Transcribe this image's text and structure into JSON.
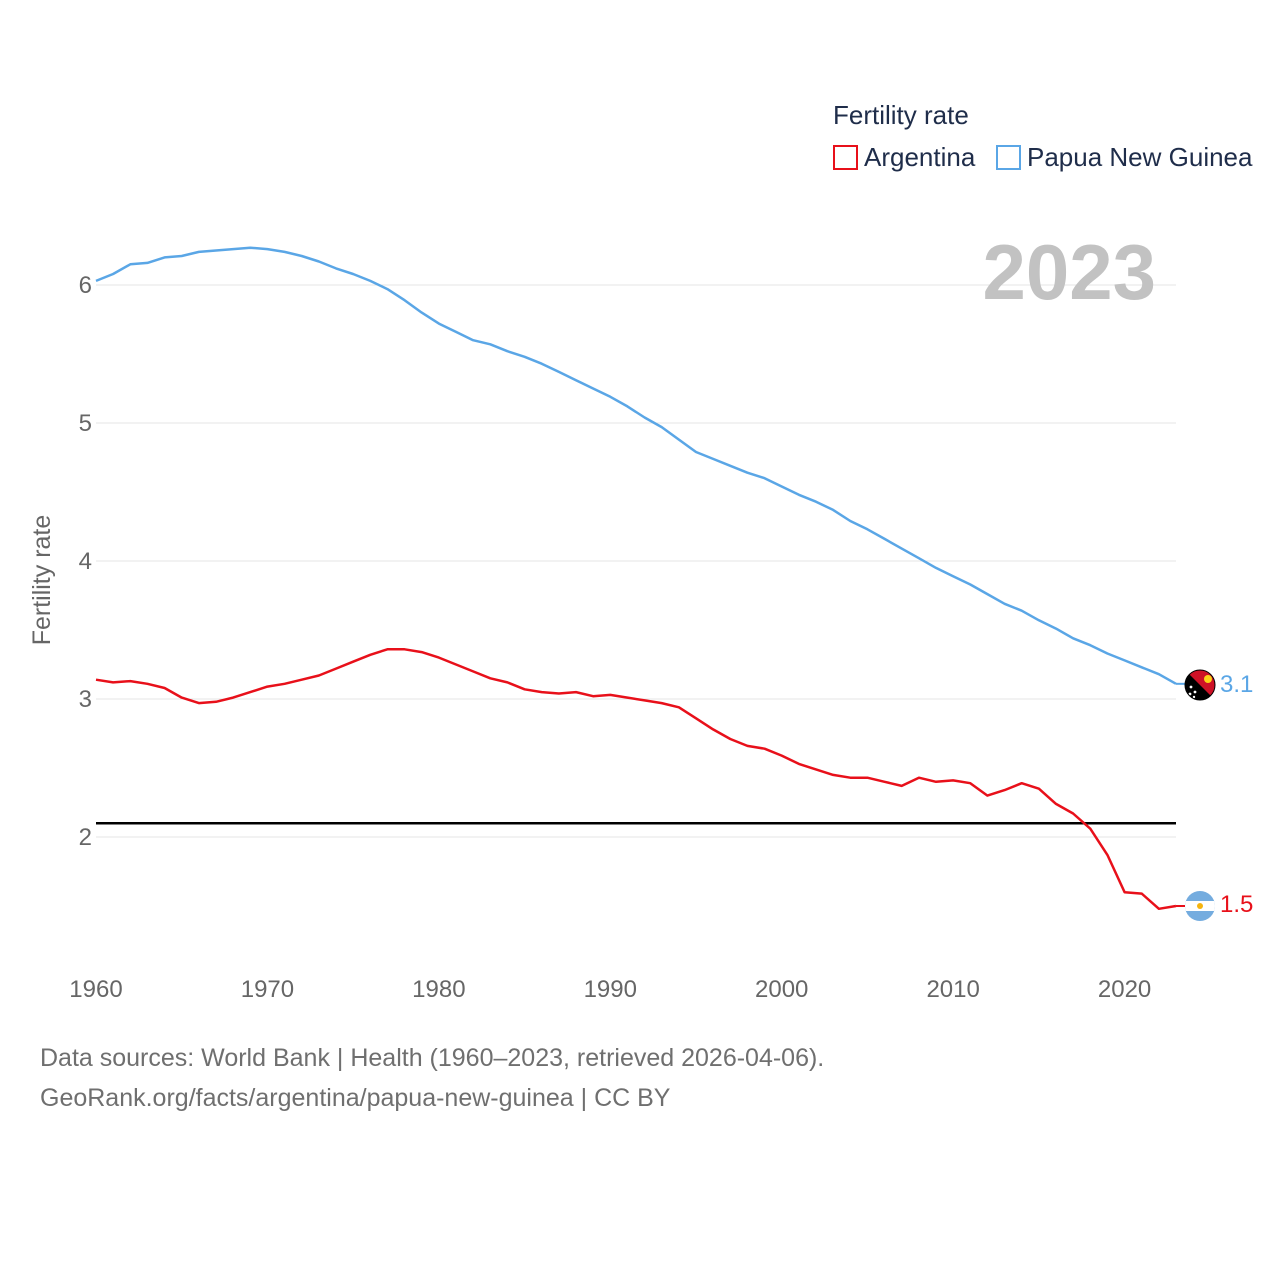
{
  "chart_data": {
    "type": "line",
    "title": "",
    "year_display": "2023",
    "ylabel": "Fertility rate",
    "xlabel": "",
    "xlim": [
      1960,
      2023
    ],
    "ylim": [
      1.0,
      6.5
    ],
    "yticks": [
      2,
      3,
      4,
      5,
      6
    ],
    "ytick_labels": [
      "2",
      "3",
      "4",
      "5",
      "6"
    ],
    "xticks": [
      1960,
      1970,
      1980,
      1990,
      2000,
      2010,
      2020
    ],
    "xtick_labels": [
      "1960",
      "1970",
      "1980",
      "1990",
      "2000",
      "2010",
      "2020"
    ],
    "reference_line": {
      "y": 2.1,
      "color": "#000000"
    },
    "legend": {
      "title": "Fertility rate",
      "position": "top-right"
    },
    "x": [
      1960,
      1961,
      1962,
      1963,
      1964,
      1965,
      1966,
      1967,
      1968,
      1969,
      1970,
      1971,
      1972,
      1973,
      1974,
      1975,
      1976,
      1977,
      1978,
      1979,
      1980,
      1981,
      1982,
      1983,
      1984,
      1985,
      1986,
      1987,
      1988,
      1989,
      1990,
      1991,
      1992,
      1993,
      1994,
      1995,
      1996,
      1997,
      1998,
      1999,
      2000,
      2001,
      2002,
      2003,
      2004,
      2005,
      2006,
      2007,
      2008,
      2009,
      2010,
      2011,
      2012,
      2013,
      2014,
      2015,
      2016,
      2017,
      2018,
      2019,
      2020,
      2021,
      2022,
      2023
    ],
    "series": [
      {
        "name": "Argentina",
        "color": "#e8101a",
        "end_label": "1.5",
        "values": [
          3.14,
          3.12,
          3.13,
          3.11,
          3.08,
          3.01,
          2.97,
          2.98,
          3.01,
          3.05,
          3.09,
          3.11,
          3.14,
          3.17,
          3.22,
          3.27,
          3.32,
          3.36,
          3.36,
          3.34,
          3.3,
          3.25,
          3.2,
          3.15,
          3.12,
          3.07,
          3.05,
          3.04,
          3.05,
          3.02,
          3.03,
          3.01,
          2.99,
          2.97,
          2.94,
          2.86,
          2.78,
          2.71,
          2.66,
          2.64,
          2.59,
          2.53,
          2.49,
          2.45,
          2.43,
          2.43,
          2.4,
          2.37,
          2.43,
          2.4,
          2.41,
          2.39,
          2.3,
          2.34,
          2.39,
          2.35,
          2.24,
          2.17,
          2.06,
          1.87,
          1.6,
          1.59,
          1.48,
          1.5
        ]
      },
      {
        "name": "Papua New Guinea",
        "color": "#5aa6e6",
        "end_label": "3.1",
        "values": [
          6.03,
          6.08,
          6.15,
          6.16,
          6.2,
          6.21,
          6.24,
          6.25,
          6.26,
          6.27,
          6.26,
          6.24,
          6.21,
          6.17,
          6.12,
          6.08,
          6.03,
          5.97,
          5.89,
          5.8,
          5.72,
          5.66,
          5.6,
          5.57,
          5.52,
          5.48,
          5.43,
          5.37,
          5.31,
          5.25,
          5.19,
          5.12,
          5.04,
          4.97,
          4.88,
          4.79,
          4.74,
          4.69,
          4.64,
          4.6,
          4.54,
          4.48,
          4.43,
          4.37,
          4.29,
          4.23,
          4.16,
          4.09,
          4.02,
          3.95,
          3.89,
          3.83,
          3.76,
          3.69,
          3.64,
          3.57,
          3.51,
          3.44,
          3.39,
          3.33,
          3.28,
          3.23,
          3.18,
          3.11
        ]
      }
    ]
  },
  "source": {
    "line1": "Data sources: World Bank | Health (1960–2023, retrieved 2026-04-06).",
    "line2": "GeoRank.org/facts/argentina/papua-new-guinea | CC BY"
  }
}
